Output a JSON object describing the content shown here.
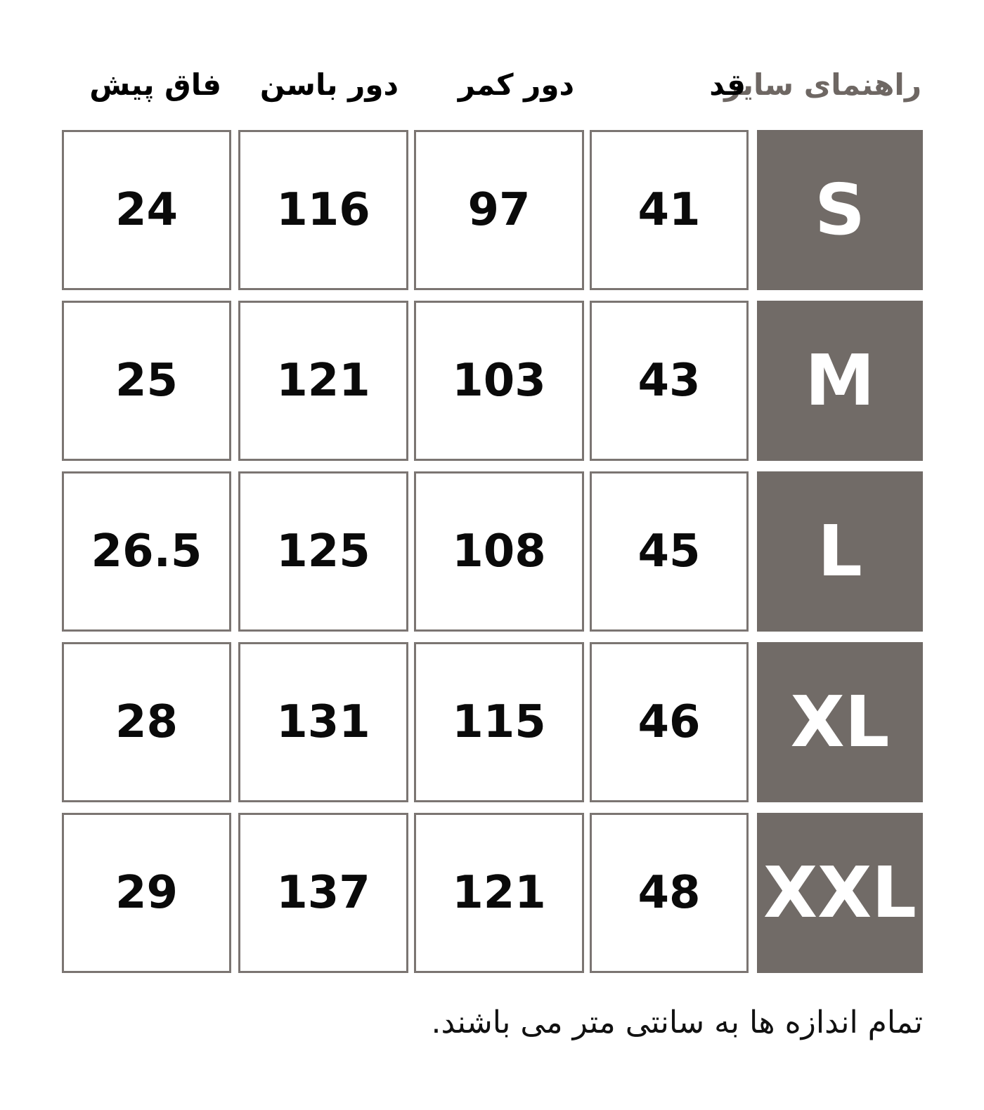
{
  "chart_data": {
    "type": "table",
    "title": "راهنمای سایز",
    "columns": {
      "height": "قد",
      "waist": "دور کمر",
      "hip": "دور باسن",
      "front_rise": "فاق پیش"
    },
    "rows": {
      "s": {
        "label": "S",
        "height": "41",
        "waist": "97",
        "hip": "116",
        "front_rise": "24"
      },
      "m": {
        "label": "M",
        "height": "43",
        "waist": "103",
        "hip": "121",
        "front_rise": "25"
      },
      "l": {
        "label": "L",
        "height": "45",
        "waist": "108",
        "hip": "125",
        "front_rise": "26.5"
      },
      "xl": {
        "label": "XL",
        "height": "46",
        "waist": "115",
        "hip": "131",
        "front_rise": "28"
      },
      "xxl": {
        "label": "XXL",
        "height": "48",
        "waist": "121",
        "hip": "137",
        "front_rise": "29"
      }
    }
  },
  "footer_note": "تمام اندازه ها به سانتی متر می باشند.",
  "colors": {
    "size_box_bg": "#716B67",
    "size_box_text": "#FFFFFF",
    "title_text": "#6E6763",
    "header_text": "#000000",
    "cell_border": "#7B7572",
    "value_text": "#0A0A0A",
    "background": "#FFFFFF"
  }
}
